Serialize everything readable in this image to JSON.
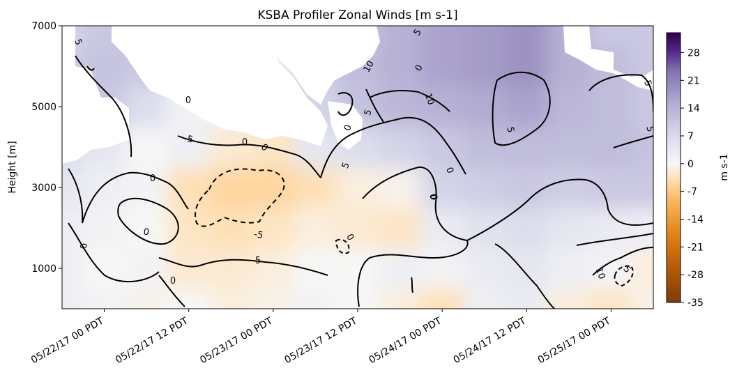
{
  "chart_data": {
    "type": "heatmap",
    "title": "KSBA Profiler Zonal Winds [m s-1]",
    "xlabel": "",
    "ylabel": "Height [m]",
    "colorbar_label": "m s-1",
    "colormap": "PuOr",
    "x_ticks": [
      "05/22/17 00 PDT",
      "05/22/17 12 PDT",
      "05/23/17 00 PDT",
      "05/23/17 12 PDT",
      "05/24/17 00 PDT",
      "05/24/17 12 PDT",
      "05/25/17 00 PDT"
    ],
    "x_range_hours": [
      -6,
      78
    ],
    "y_ticks": [
      1000,
      3000,
      5000,
      7000
    ],
    "ylim": [
      0,
      7000
    ],
    "colorbar_ticks": [
      28,
      21,
      14,
      7,
      0,
      -7,
      -14,
      -21,
      -28,
      -35
    ],
    "colorbar_range": [
      -35,
      33
    ],
    "contour_levels": [
      -5,
      0,
      5,
      10
    ],
    "contour_labels": [
      "5",
      "0",
      "5",
      "10",
      "0",
      "5",
      "0",
      "0",
      "0",
      "0",
      "0",
      "-5",
      "0",
      "5",
      "0",
      "0",
      "5",
      "5",
      "0",
      "0",
      "5",
      "10",
      "0",
      "5",
      "5",
      "10",
      "5"
    ],
    "hour_axis": [
      -6,
      0,
      6,
      12,
      18,
      24,
      30,
      36,
      42,
      48,
      54,
      60,
      66,
      72,
      78
    ],
    "height_axis": [
      0,
      1000,
      2000,
      3000,
      4000,
      5000,
      6000,
      7000
    ],
    "wind_values": [
      [
        2,
        1,
        -1,
        0,
        -2,
        -1,
        1,
        0,
        -2,
        -5,
        2,
        3,
        -2,
        -4,
        -1
      ],
      [
        2,
        0,
        1,
        -3,
        -3,
        -2,
        0,
        0,
        2,
        1,
        3,
        4,
        2,
        1,
        -2
      ],
      [
        2,
        1,
        0,
        -4,
        -5,
        -4,
        -2,
        -3,
        -4,
        3,
        5,
        6,
        4,
        3,
        2
      ],
      [
        4,
        2,
        1,
        -5,
        -7,
        -7,
        -5,
        -2,
        -1,
        8,
        9,
        10,
        9,
        10,
        10
      ],
      [
        6,
        4,
        0,
        2,
        -3,
        -4,
        4,
        6,
        8,
        10,
        12,
        12,
        12,
        12,
        11
      ],
      [
        8,
        10,
        6,
        1,
        2,
        1,
        8,
        11,
        13,
        14,
        15,
        16,
        13,
        12,
        10
      ],
      [
        9,
        11,
        10,
        3,
        4,
        3,
        9,
        12,
        14,
        16,
        17,
        18,
        14,
        12,
        10
      ],
      [
        8,
        10,
        12,
        4,
        5,
        3,
        8,
        11,
        14,
        16,
        17,
        18,
        14,
        10,
        10
      ]
    ],
    "missing_regions": [
      "top-left",
      "top-center",
      "upper-middle",
      "top-right"
    ]
  }
}
